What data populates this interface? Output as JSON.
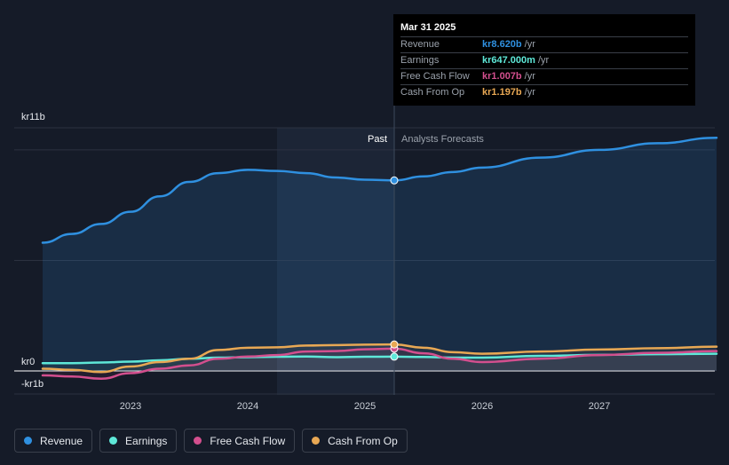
{
  "chart_data": {
    "type": "line",
    "y_axis": {
      "top_label": "kr11b",
      "zero_label": "kr0",
      "neg_label": "-kr1b",
      "ylim": [
        -1,
        11
      ]
    },
    "x_ticks": [
      "2023",
      "2024",
      "2025",
      "2026",
      "2027"
    ],
    "past_label": "Past",
    "forecast_label": "Analysts Forecasts",
    "series": [
      {
        "name": "Revenue",
        "color": "#2f90e0",
        "points": [
          [
            2022.25,
            5.8
          ],
          [
            2022.5,
            6.2
          ],
          [
            2022.75,
            6.65
          ],
          [
            2023.0,
            7.2
          ],
          [
            2023.25,
            7.9
          ],
          [
            2023.5,
            8.55
          ],
          [
            2023.75,
            8.95
          ],
          [
            2024.0,
            9.1
          ],
          [
            2024.25,
            9.05
          ],
          [
            2024.5,
            8.95
          ],
          [
            2024.75,
            8.75
          ],
          [
            2025.0,
            8.65
          ],
          [
            2025.25,
            8.62
          ],
          [
            2025.5,
            8.8
          ],
          [
            2025.75,
            9.0
          ],
          [
            2026.0,
            9.2
          ],
          [
            2026.5,
            9.65
          ],
          [
            2027.0,
            10.0
          ],
          [
            2027.5,
            10.3
          ],
          [
            2028.0,
            10.55
          ]
        ]
      },
      {
        "name": "Earnings",
        "color": "#5ee8d8",
        "points": [
          [
            2022.25,
            0.35
          ],
          [
            2022.5,
            0.35
          ],
          [
            2022.75,
            0.38
          ],
          [
            2023.0,
            0.42
          ],
          [
            2023.25,
            0.48
          ],
          [
            2023.5,
            0.55
          ],
          [
            2023.75,
            0.6
          ],
          [
            2024.0,
            0.62
          ],
          [
            2024.25,
            0.64
          ],
          [
            2024.5,
            0.65
          ],
          [
            2024.75,
            0.62
          ],
          [
            2025.0,
            0.64
          ],
          [
            2025.25,
            0.647
          ],
          [
            2025.5,
            0.63
          ],
          [
            2025.75,
            0.6
          ],
          [
            2026.0,
            0.6
          ],
          [
            2026.5,
            0.68
          ],
          [
            2027.0,
            0.73
          ],
          [
            2027.5,
            0.76
          ],
          [
            2028.0,
            0.78
          ]
        ]
      },
      {
        "name": "Free Cash Flow",
        "color": "#d34f8e",
        "points": [
          [
            2022.25,
            -0.2
          ],
          [
            2022.5,
            -0.25
          ],
          [
            2022.75,
            -0.35
          ],
          [
            2023.0,
            -0.1
          ],
          [
            2023.25,
            0.1
          ],
          [
            2023.5,
            0.25
          ],
          [
            2023.75,
            0.55
          ],
          [
            2024.0,
            0.65
          ],
          [
            2024.25,
            0.72
          ],
          [
            2024.5,
            0.88
          ],
          [
            2024.75,
            0.9
          ],
          [
            2025.0,
            0.98
          ],
          [
            2025.25,
            1.007
          ],
          [
            2025.5,
            0.8
          ],
          [
            2025.75,
            0.55
          ],
          [
            2026.0,
            0.4
          ],
          [
            2026.5,
            0.55
          ],
          [
            2027.0,
            0.72
          ],
          [
            2027.5,
            0.82
          ],
          [
            2028.0,
            0.9
          ]
        ]
      },
      {
        "name": "Cash From Op",
        "color": "#e8a854",
        "points": [
          [
            2022.25,
            0.1
          ],
          [
            2022.5,
            0.05
          ],
          [
            2022.75,
            -0.05
          ],
          [
            2023.0,
            0.2
          ],
          [
            2023.25,
            0.4
          ],
          [
            2023.5,
            0.55
          ],
          [
            2023.75,
            0.95
          ],
          [
            2024.0,
            1.05
          ],
          [
            2024.25,
            1.07
          ],
          [
            2024.5,
            1.15
          ],
          [
            2024.75,
            1.17
          ],
          [
            2025.0,
            1.19
          ],
          [
            2025.25,
            1.197
          ],
          [
            2025.5,
            1.05
          ],
          [
            2025.75,
            0.85
          ],
          [
            2026.0,
            0.78
          ],
          [
            2026.5,
            0.88
          ],
          [
            2027.0,
            0.97
          ],
          [
            2027.5,
            1.03
          ],
          [
            2028.0,
            1.1
          ]
        ]
      }
    ],
    "tooltip": {
      "date": "Mar 31 2025",
      "x": 2025.25,
      "rows": [
        {
          "label": "Revenue",
          "value": "kr8.620b",
          "unit": "/yr",
          "color": "#2f90e0"
        },
        {
          "label": "Earnings",
          "value": "kr647.000m",
          "unit": "/yr",
          "color": "#5ee8d8"
        },
        {
          "label": "Free Cash Flow",
          "value": "kr1.007b",
          "unit": "/yr",
          "color": "#d34f8e"
        },
        {
          "label": "Cash From Op",
          "value": "kr1.197b",
          "unit": "/yr",
          "color": "#e8a854"
        }
      ]
    },
    "past_region": [
      2024.25,
      2025.25
    ]
  },
  "legend": [
    {
      "label": "Revenue",
      "color": "#2f90e0"
    },
    {
      "label": "Earnings",
      "color": "#5ee8d8"
    },
    {
      "label": "Free Cash Flow",
      "color": "#d34f8e"
    },
    {
      "label": "Cash From Op",
      "color": "#e8a854"
    }
  ]
}
